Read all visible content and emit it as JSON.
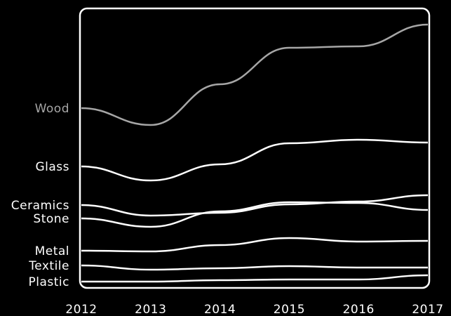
{
  "chart_data": {
    "type": "line",
    "x": [
      "2012",
      "2013",
      "2014",
      "2015",
      "2016",
      "2017"
    ],
    "series": [
      {
        "name": "Wood",
        "color": "#a6a6a6",
        "values": [
          154,
          178,
          120,
          68,
          66,
          35
        ]
      },
      {
        "name": "Glass",
        "color": "#ffffff",
        "values": [
          237,
          257,
          234,
          204,
          199,
          203
        ]
      },
      {
        "name": "Ceramics",
        "color": "#ffffff",
        "values": [
          292,
          307,
          303,
          291,
          287,
          278
        ]
      },
      {
        "name": "Stone",
        "color": "#ffffff",
        "values": [
          311,
          323,
          301,
          288,
          289,
          299
        ]
      },
      {
        "name": "Metal",
        "color": "#ffffff",
        "values": [
          357,
          358,
          349,
          339,
          344,
          343
        ]
      },
      {
        "name": "Textile",
        "color": "#ffffff",
        "values": [
          378,
          384,
          382,
          379,
          381,
          381
        ]
      },
      {
        "name": "Plastic",
        "color": "#ffffff",
        "values": [
          401,
          401,
          399,
          398,
          398,
          392
        ]
      }
    ],
    "xlabel": "",
    "ylabel": "",
    "title": "",
    "grid": false,
    "legend": "left, series names at line start",
    "background": "#000000",
    "frame_color": "#ffffff"
  }
}
